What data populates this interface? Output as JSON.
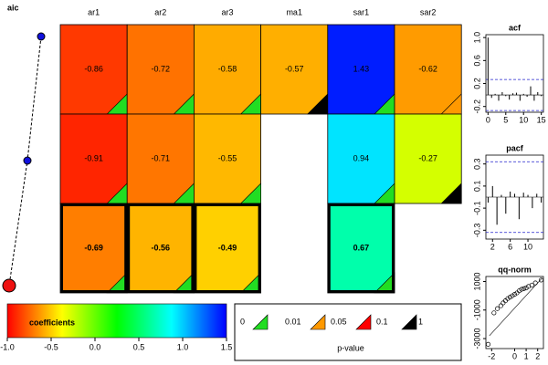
{
  "chart_data": [
    {
      "type": "heatmap",
      "ylabel": "aic",
      "categories": [
        "ar1",
        "ar2",
        "ar3",
        "ma1",
        "sar1",
        "sar2"
      ],
      "values": [
        [
          -0.86,
          -0.72,
          -0.58,
          -0.57,
          1.43,
          -0.62
        ],
        [
          -0.91,
          -0.71,
          -0.55,
          null,
          0.94,
          -0.27
        ],
        [
          -0.69,
          -0.56,
          -0.49,
          null,
          0.67,
          null
        ]
      ],
      "triangle_colors": [
        [
          "#22dd22",
          "#22dd22",
          "#22dd22",
          "#000000",
          "#22dd22",
          "#ff9900"
        ],
        [
          "#22dd22",
          "#22dd22",
          "#22dd22",
          null,
          "#22dd22",
          "#000000"
        ],
        [
          "#22dd22",
          "#22dd22",
          "#22dd22",
          null,
          "#22dd22",
          null
        ]
      ],
      "highlight_rows": [
        2
      ],
      "colorscale": [
        "#ff0000",
        "#ffff00",
        "#00ff00",
        "#00ffff",
        "#0000ff"
      ]
    },
    {
      "type": "colorbar",
      "label": "coefficients",
      "xlim": [
        -1.0,
        1.5
      ],
      "xticks": [
        {
          "value": -1,
          "label": "-1.0"
        },
        -0.5,
        {
          "value": 0,
          "label": "0.0"
        },
        0.5,
        {
          "value": 1,
          "label": "1.0"
        },
        1.5
      ]
    },
    {
      "type": "legend",
      "title": "p-value",
      "breaks": [
        0,
        0.01,
        0.05,
        0.1,
        1
      ],
      "colors": [
        "#22dd22",
        "#ff9900",
        "#ff0000",
        "#000000"
      ]
    },
    {
      "type": "spike",
      "title": "acf",
      "x": [
        0,
        1,
        2,
        3,
        4,
        5,
        6,
        7,
        8,
        9,
        10,
        11,
        12,
        13,
        14,
        15
      ],
      "values": [
        1.0,
        -0.05,
        0.02,
        -0.1,
        0.05,
        -0.02,
        -0.08,
        0.03,
        0.04,
        -0.1,
        0.02,
        -0.03,
        0.15,
        -0.1,
        0.05,
        -0.02
      ],
      "ci": [
        -0.27,
        0.27
      ],
      "xlim": [
        -0.6,
        15.6
      ],
      "ylim": [
        -0.3,
        1.05
      ],
      "xticks": [
        0,
        5,
        10,
        15
      ],
      "yticks": [
        -0.2,
        0.2,
        0.6,
        {
          "value": 1,
          "label": "1.0"
        }
      ]
    },
    {
      "type": "spike",
      "title": "pacf",
      "x": [
        1,
        2,
        3,
        4,
        5,
        6,
        7,
        8,
        9,
        10,
        11,
        12,
        13
      ],
      "values": [
        -0.05,
        0.1,
        -0.25,
        0.02,
        -0.15,
        0.05,
        0.03,
        -0.2,
        0.04,
        0.02,
        -0.1,
        0.03,
        -0.05
      ],
      "ci": [
        -0.32,
        0.32
      ],
      "xlim": [
        0.5,
        13.5
      ],
      "ylim": [
        -0.38,
        0.38
      ],
      "xticks": [
        2,
        6,
        10
      ],
      "yticks": [
        -0.3,
        -0.1,
        0.1,
        0.3
      ]
    },
    {
      "type": "scatter",
      "title": "qq-norm",
      "x": [
        -2.3,
        -1.8,
        -1.5,
        -1.2,
        -1,
        -0.8,
        -0.6,
        -0.4,
        -0.2,
        0,
        0.2,
        0.4,
        0.6,
        0.8,
        1,
        1.2,
        1.5,
        1.8,
        2.3
      ],
      "values": [
        -3400,
        -1200,
        -900,
        -700,
        -500,
        -350,
        -200,
        -100,
        0,
        100,
        200,
        350,
        450,
        500,
        550,
        650,
        750,
        900,
        1100
      ],
      "xlim": [
        -2.5,
        2.5
      ],
      "ylim": [
        -3700,
        1350
      ],
      "xticks": [
        -2,
        0,
        1,
        2
      ],
      "yticks": [
        -3000,
        -1000,
        1000
      ]
    }
  ]
}
